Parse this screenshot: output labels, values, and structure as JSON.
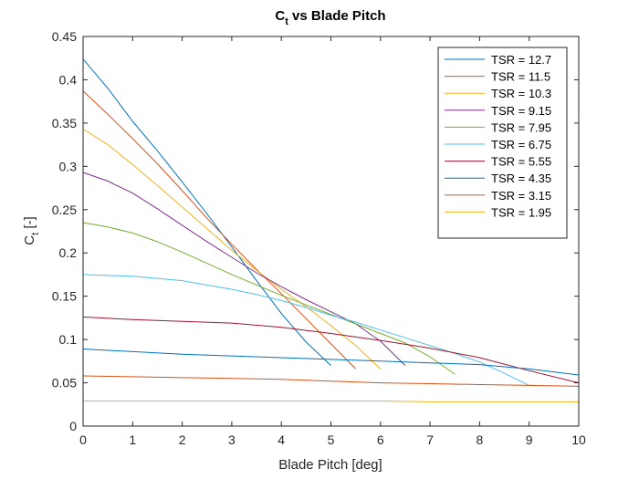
{
  "chart_data": {
    "type": "line",
    "title_main": "C",
    "title_sub": "t",
    "title_rest": " vs Blade Pitch",
    "xlabel": "Blade Pitch [deg]",
    "ylabel_main": "C",
    "ylabel_sub": "t",
    "ylabel_rest": " [-]",
    "xlim": [
      0,
      10
    ],
    "ylim": [
      0,
      0.45
    ],
    "xticks": [
      "0",
      "1",
      "2",
      "3",
      "4",
      "5",
      "6",
      "7",
      "8",
      "9",
      "10"
    ],
    "yticks": [
      "0",
      "0.05",
      "0.1",
      "0.15",
      "0.2",
      "0.25",
      "0.3",
      "0.35",
      "0.4",
      "0.45"
    ],
    "grid": false,
    "legend_position": "top-right",
    "series": [
      {
        "name": "TSR = 12.7",
        "color": "#0072BD",
        "x": [
          0,
          0.5,
          1,
          1.5,
          2,
          2.5,
          3,
          3.5,
          4,
          4.5,
          5
        ],
        "y": [
          0.424,
          0.39,
          0.352,
          0.318,
          0.282,
          0.245,
          0.207,
          0.168,
          0.13,
          0.097,
          0.07
        ]
      },
      {
        "name": "TSR = 11.5",
        "color": "#D95319",
        "x": [
          0,
          0.5,
          1,
          1.5,
          2,
          2.5,
          3,
          3.5,
          4,
          4.5,
          5,
          5.5
        ],
        "y": [
          0.387,
          0.36,
          0.332,
          0.303,
          0.272,
          0.24,
          0.21,
          0.181,
          0.153,
          0.124,
          0.095,
          0.066
        ]
      },
      {
        "name": "TSR = 10.3",
        "color": "#EDB120",
        "x": [
          0,
          0.5,
          1,
          1.5,
          2,
          2.5,
          3,
          3.5,
          4,
          4.5,
          5,
          5.5,
          6
        ],
        "y": [
          0.343,
          0.325,
          0.302,
          0.278,
          0.253,
          0.228,
          0.203,
          0.18,
          0.158,
          0.138,
          0.116,
          0.093,
          0.066
        ]
      },
      {
        "name": "TSR = 9.15",
        "color": "#7E2F8E",
        "x": [
          0,
          0.5,
          1,
          1.5,
          2,
          2.5,
          3,
          3.5,
          4,
          4.5,
          5,
          5.5,
          6,
          6.5
        ],
        "y": [
          0.293,
          0.283,
          0.269,
          0.251,
          0.232,
          0.213,
          0.195,
          0.177,
          0.161,
          0.146,
          0.132,
          0.118,
          0.098,
          0.07
        ]
      },
      {
        "name": "TSR = 7.95",
        "color": "#77AC30",
        "x": [
          0,
          0.5,
          1,
          1.5,
          2,
          2.5,
          3,
          3.5,
          4,
          4.5,
          5,
          5.5,
          6,
          6.5,
          7,
          7.5
        ],
        "y": [
          0.235,
          0.23,
          0.223,
          0.213,
          0.201,
          0.188,
          0.175,
          0.163,
          0.151,
          0.14,
          0.129,
          0.118,
          0.107,
          0.096,
          0.08,
          0.06
        ]
      },
      {
        "name": "TSR = 6.75",
        "color": "#4DBEEE",
        "x": [
          0,
          1,
          2,
          3,
          3.5,
          4,
          4.5,
          5,
          5.5,
          6,
          6.5,
          7,
          7.5,
          8,
          8.5,
          9
        ],
        "y": [
          0.175,
          0.173,
          0.168,
          0.158,
          0.152,
          0.145,
          0.137,
          0.128,
          0.12,
          0.111,
          0.102,
          0.093,
          0.084,
          0.074,
          0.061,
          0.047
        ]
      },
      {
        "name": "TSR = 5.55",
        "color": "#A2142F",
        "x": [
          0,
          1,
          2,
          3,
          4,
          5,
          6,
          7,
          8,
          9,
          10
        ],
        "y": [
          0.126,
          0.123,
          0.121,
          0.119,
          0.114,
          0.107,
          0.099,
          0.09,
          0.079,
          0.064,
          0.05
        ]
      },
      {
        "name": "TSR = 4.35",
        "color": "#0072BD",
        "x": [
          0,
          1,
          2,
          3,
          4,
          5,
          6,
          7,
          8,
          9,
          10
        ],
        "y": [
          0.089,
          0.086,
          0.083,
          0.081,
          0.079,
          0.077,
          0.075,
          0.073,
          0.071,
          0.066,
          0.059
        ]
      },
      {
        "name": "TSR = 3.15",
        "color": "#D95319",
        "x": [
          0,
          1,
          2,
          3,
          4,
          5,
          6,
          7,
          8,
          9,
          10
        ],
        "y": [
          0.058,
          0.057,
          0.056,
          0.055,
          0.054,
          0.052,
          0.05,
          0.049,
          0.048,
          0.047,
          0.046
        ]
      },
      {
        "name": "TSR = 1.95",
        "color": "#EDB120",
        "x": [
          0,
          1,
          2,
          3,
          4,
          5,
          6,
          7,
          8,
          9,
          10
        ],
        "y": [
          0.029,
          0.029,
          0.029,
          0.029,
          0.029,
          0.029,
          0.029,
          0.028,
          0.028,
          0.028,
          0.028
        ]
      }
    ]
  }
}
